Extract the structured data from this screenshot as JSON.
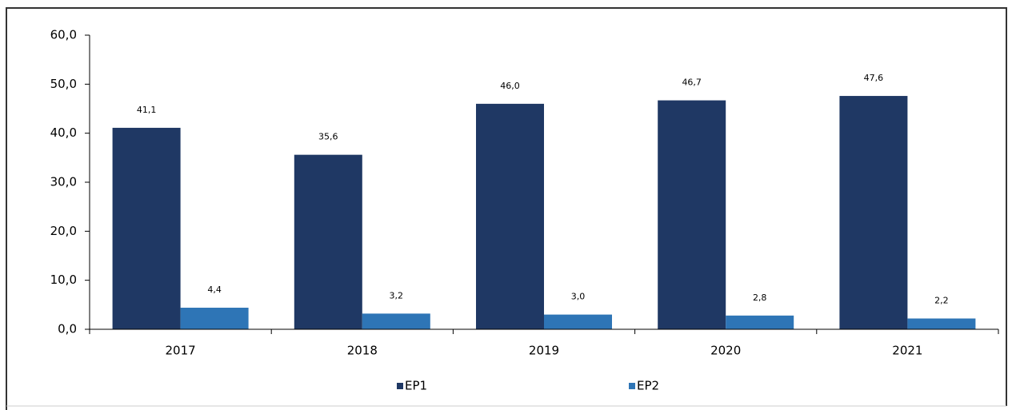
{
  "chart_data": {
    "type": "bar",
    "categories": [
      "2017",
      "2018",
      "2019",
      "2020",
      "2021"
    ],
    "series": [
      {
        "name": "EP1",
        "color": "#1f3864",
        "values": [
          41.1,
          35.6,
          46.0,
          46.7,
          47.6
        ],
        "value_labels": [
          "41,1",
          "35,6",
          "46,0",
          "46,7",
          "47,6"
        ]
      },
      {
        "name": "EP2",
        "color": "#2e75b6",
        "values": [
          4.4,
          3.2,
          3.0,
          2.8,
          2.2
        ],
        "value_labels": [
          "4,4",
          "3,2",
          "3,0",
          "2,8",
          "2,2"
        ]
      }
    ],
    "ylim": [
      0,
      60
    ],
    "yticks": [
      {
        "value": 0,
        "label": "0,0"
      },
      {
        "value": 10,
        "label": "10,0"
      },
      {
        "value": 20,
        "label": "20,0"
      },
      {
        "value": 30,
        "label": "30,0"
      },
      {
        "value": 40,
        "label": "40,0"
      },
      {
        "value": 50,
        "label": "50,0"
      },
      {
        "value": 60,
        "label": "60,0"
      }
    ],
    "grid": false,
    "legend": "bottom"
  }
}
